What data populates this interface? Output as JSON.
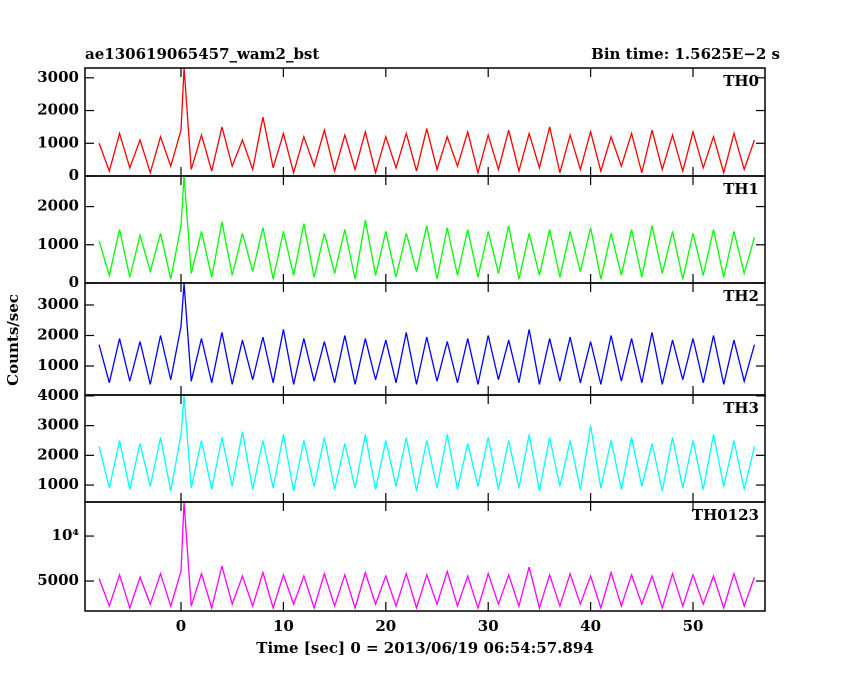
{
  "title": "ae130619065457_wam2_bst",
  "subtitle": "Bin time: 1.5625E−2 s",
  "y_label": "Counts/sec",
  "x_label": "Time [sec] 0 = 2013/06/19 06:54:57.894",
  "chart_data": [
    {
      "type": "line",
      "xlim": [
        -9.375,
        57.03
      ],
      "xticks": [
        0,
        10,
        20,
        30,
        40,
        50
      ],
      "ylim": [
        0,
        3300
      ],
      "yticks": [
        0,
        1000,
        2000,
        3000
      ],
      "x": [
        -8,
        -7,
        -6,
        -5,
        -4,
        -3,
        -2,
        -1,
        0,
        0.3,
        1,
        2,
        3,
        4,
        5,
        6,
        7,
        8,
        9,
        10,
        11,
        12,
        13,
        14,
        15,
        16,
        17,
        18,
        19,
        20,
        21,
        22,
        23,
        24,
        25,
        26,
        27,
        28,
        29,
        30,
        31,
        32,
        33,
        34,
        35,
        36,
        37,
        38,
        39,
        40,
        41,
        42,
        43,
        44,
        45,
        46,
        47,
        48,
        49,
        50,
        51,
        52,
        53,
        54,
        55,
        56
      ],
      "series": [
        {
          "name": "TH0",
          "color": "#ff0000",
          "values": [
            1000,
            150,
            1300,
            250,
            1100,
            100,
            1200,
            300,
            1400,
            3300,
            200,
            1250,
            150,
            1500,
            300,
            1100,
            200,
            1800,
            250,
            1300,
            100,
            1200,
            300,
            1400,
            150,
            1250,
            200,
            1350,
            100,
            1200,
            250,
            1300,
            150,
            1450,
            200,
            1200,
            300,
            1350,
            100,
            1250,
            200,
            1400,
            150,
            1300,
            250,
            1500,
            100,
            1250,
            200,
            1350,
            150,
            1200,
            300,
            1300,
            100,
            1400,
            200,
            1250,
            150,
            1350,
            250,
            1200,
            100,
            1300,
            200,
            1100
          ]
        }
      ]
    },
    {
      "type": "line",
      "xlim": [
        -9.375,
        57.03
      ],
      "xticks": [
        0,
        10,
        20,
        30,
        40,
        50
      ],
      "ylim": [
        0,
        2800
      ],
      "yticks": [
        0,
        1000,
        2000
      ],
      "x": [
        -8,
        -7,
        -6,
        -5,
        -4,
        -3,
        -2,
        -1,
        0,
        0.3,
        1,
        2,
        3,
        4,
        5,
        6,
        7,
        8,
        9,
        10,
        11,
        12,
        13,
        14,
        15,
        16,
        17,
        18,
        19,
        20,
        21,
        22,
        23,
        24,
        25,
        26,
        27,
        28,
        29,
        30,
        31,
        32,
        33,
        34,
        35,
        36,
        37,
        38,
        39,
        40,
        41,
        42,
        43,
        44,
        45,
        46,
        47,
        48,
        49,
        50,
        51,
        52,
        53,
        54,
        55,
        56
      ],
      "series": [
        {
          "name": "TH1",
          "color": "#00ff00",
          "values": [
            1100,
            200,
            1400,
            150,
            1250,
            300,
            1300,
            100,
            1500,
            2800,
            250,
            1350,
            150,
            1600,
            200,
            1300,
            300,
            1450,
            100,
            1350,
            200,
            1550,
            150,
            1300,
            250,
            1400,
            100,
            1650,
            200,
            1350,
            150,
            1300,
            300,
            1500,
            100,
            1450,
            200,
            1400,
            150,
            1350,
            250,
            1500,
            100,
            1300,
            200,
            1400,
            150,
            1350,
            300,
            1450,
            100,
            1300,
            200,
            1400,
            150,
            1500,
            250,
            1350,
            100,
            1300,
            200,
            1400,
            150,
            1350,
            250,
            1200
          ]
        }
      ]
    },
    {
      "type": "line",
      "xlim": [
        -9.375,
        57.03
      ],
      "xticks": [
        0,
        10,
        20,
        30,
        40,
        50
      ],
      "ylim": [
        50,
        3720
      ],
      "yticks": [
        1000,
        2000,
        3000
      ],
      "x": [
        -8,
        -7,
        -6,
        -5,
        -4,
        -3,
        -2,
        -1,
        0,
        0.3,
        1,
        2,
        3,
        4,
        5,
        6,
        7,
        8,
        9,
        10,
        11,
        12,
        13,
        14,
        15,
        16,
        17,
        18,
        19,
        20,
        21,
        22,
        23,
        24,
        25,
        26,
        27,
        28,
        29,
        30,
        31,
        32,
        33,
        34,
        35,
        36,
        37,
        38,
        39,
        40,
        41,
        42,
        43,
        44,
        45,
        46,
        47,
        48,
        49,
        50,
        51,
        52,
        53,
        54,
        55,
        56
      ],
      "series": [
        {
          "name": "TH2",
          "color": "#0000ff",
          "values": [
            1700,
            450,
            1900,
            500,
            1800,
            400,
            2000,
            550,
            2300,
            3700,
            500,
            1900,
            450,
            2100,
            400,
            1850,
            550,
            1950,
            450,
            2200,
            400,
            1900,
            500,
            1800,
            450,
            2000,
            400,
            1900,
            550,
            1850,
            450,
            2100,
            400,
            1950,
            500,
            1800,
            450,
            1900,
            400,
            2000,
            550,
            1850,
            450,
            2200,
            400,
            1900,
            500,
            1950,
            450,
            1800,
            400,
            2000,
            500,
            1900,
            450,
            2100,
            400,
            1850,
            550,
            1900,
            450,
            2000,
            400,
            1850,
            500,
            1700
          ]
        }
      ]
    },
    {
      "type": "line",
      "xlim": [
        -9.375,
        57.03
      ],
      "xticks": [
        0,
        10,
        20,
        30,
        40,
        50
      ],
      "ylim": [
        430,
        4030
      ],
      "yticks": [
        1000,
        2000,
        3000,
        4000
      ],
      "x": [
        -8,
        -7,
        -6,
        -5,
        -4,
        -3,
        -2,
        -1,
        0,
        0.3,
        1,
        2,
        3,
        4,
        5,
        6,
        7,
        8,
        9,
        10,
        11,
        12,
        13,
        14,
        15,
        16,
        17,
        18,
        19,
        20,
        21,
        22,
        23,
        24,
        25,
        26,
        27,
        28,
        29,
        30,
        31,
        32,
        33,
        34,
        35,
        36,
        37,
        38,
        39,
        40,
        41,
        42,
        43,
        44,
        45,
        46,
        47,
        48,
        49,
        50,
        51,
        52,
        53,
        54,
        55,
        56
      ],
      "series": [
        {
          "name": "TH3",
          "color": "#00ffff",
          "values": [
            2300,
            900,
            2500,
            850,
            2400,
            950,
            2600,
            800,
            2700,
            4000,
            900,
            2500,
            850,
            2600,
            950,
            2800,
            850,
            2500,
            900,
            2700,
            800,
            2500,
            950,
            2600,
            850,
            2400,
            900,
            2700,
            850,
            2500,
            950,
            2600,
            800,
            2500,
            900,
            2700,
            850,
            2400,
            950,
            2600,
            850,
            2500,
            900,
            2700,
            800,
            2600,
            950,
            2500,
            850,
            3000,
            900,
            2500,
            850,
            2600,
            950,
            2400,
            800,
            2600,
            900,
            2500,
            850,
            2700,
            950,
            2500,
            850,
            2300
          ]
        }
      ]
    },
    {
      "type": "line",
      "log": true,
      "xlim": [
        -9.375,
        57.03
      ],
      "xticks": [
        0,
        10,
        20,
        30,
        40,
        50
      ],
      "ylim": [
        3150,
        16900
      ],
      "yticks": [
        5000,
        {
          "value": 10000,
          "label": "10⁴"
        }
      ],
      "x": [
        -8,
        -7,
        -6,
        -5,
        -4,
        -3,
        -2,
        -1,
        0,
        0.3,
        1,
        2,
        3,
        4,
        5,
        6,
        7,
        8,
        9,
        10,
        11,
        12,
        13,
        14,
        15,
        16,
        17,
        18,
        19,
        20,
        21,
        22,
        23,
        24,
        25,
        26,
        27,
        28,
        29,
        30,
        31,
        32,
        33,
        34,
        35,
        36,
        37,
        38,
        39,
        40,
        41,
        42,
        43,
        44,
        45,
        46,
        47,
        48,
        49,
        50,
        51,
        52,
        53,
        54,
        55,
        56
      ],
      "series": [
        {
          "name": "TH0123",
          "color": "#ff00ff",
          "values": [
            5200,
            3400,
            5500,
            3300,
            5300,
            3500,
            5600,
            3400,
            5800,
            16900,
            3400,
            5600,
            3300,
            6300,
            3500,
            5400,
            3400,
            5700,
            3300,
            5500,
            3500,
            5400,
            3300,
            5600,
            3400,
            5500,
            3300,
            5700,
            3500,
            5400,
            3400,
            5600,
            3300,
            5500,
            3500,
            5800,
            3400,
            5400,
            3300,
            5600,
            3500,
            5500,
            3400,
            6200,
            3300,
            5500,
            3400,
            5600,
            3500,
            5400,
            3300,
            5700,
            3400,
            5500,
            3500,
            5400,
            3300,
            5600,
            3400,
            5500,
            3500,
            5400,
            3300,
            5600,
            3400,
            5300
          ]
        }
      ]
    }
  ]
}
